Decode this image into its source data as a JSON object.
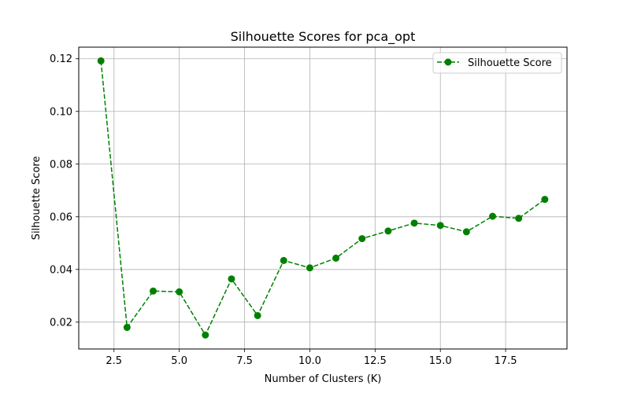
{
  "chart_data": {
    "type": "line",
    "title": "Silhouette Scores for pca_opt",
    "xlabel": "Number of Clusters (K)",
    "ylabel": "Silhouette Score",
    "xlim": [
      1.15,
      19.85
    ],
    "ylim": [
      0.0098,
      0.1244
    ],
    "x_ticks": [
      2.5,
      5.0,
      7.5,
      10.0,
      12.5,
      15.0,
      17.5
    ],
    "x_tick_labels": [
      "2.5",
      "5.0",
      "7.5",
      "10.0",
      "12.5",
      "15.0",
      "17.5"
    ],
    "y_ticks": [
      0.02,
      0.04,
      0.06,
      0.08,
      0.1,
      0.12
    ],
    "y_tick_labels": [
      "0.02",
      "0.04",
      "0.06",
      "0.08",
      "0.10",
      "0.12"
    ],
    "grid": true,
    "legend_position": "top-right",
    "series": [
      {
        "name": "Silhouette Score",
        "color": "#008000",
        "line_style": "dashed",
        "marker": "circle",
        "x": [
          2,
          3,
          4,
          5,
          6,
          7,
          8,
          9,
          10,
          11,
          12,
          13,
          14,
          15,
          16,
          17,
          18,
          19
        ],
        "values": [
          0.1192,
          0.018,
          0.0318,
          0.0315,
          0.0151,
          0.0364,
          0.0225,
          0.0434,
          0.0406,
          0.0443,
          0.0517,
          0.0546,
          0.0576,
          0.0567,
          0.0543,
          0.0602,
          0.0594,
          0.0666
        ]
      }
    ]
  }
}
